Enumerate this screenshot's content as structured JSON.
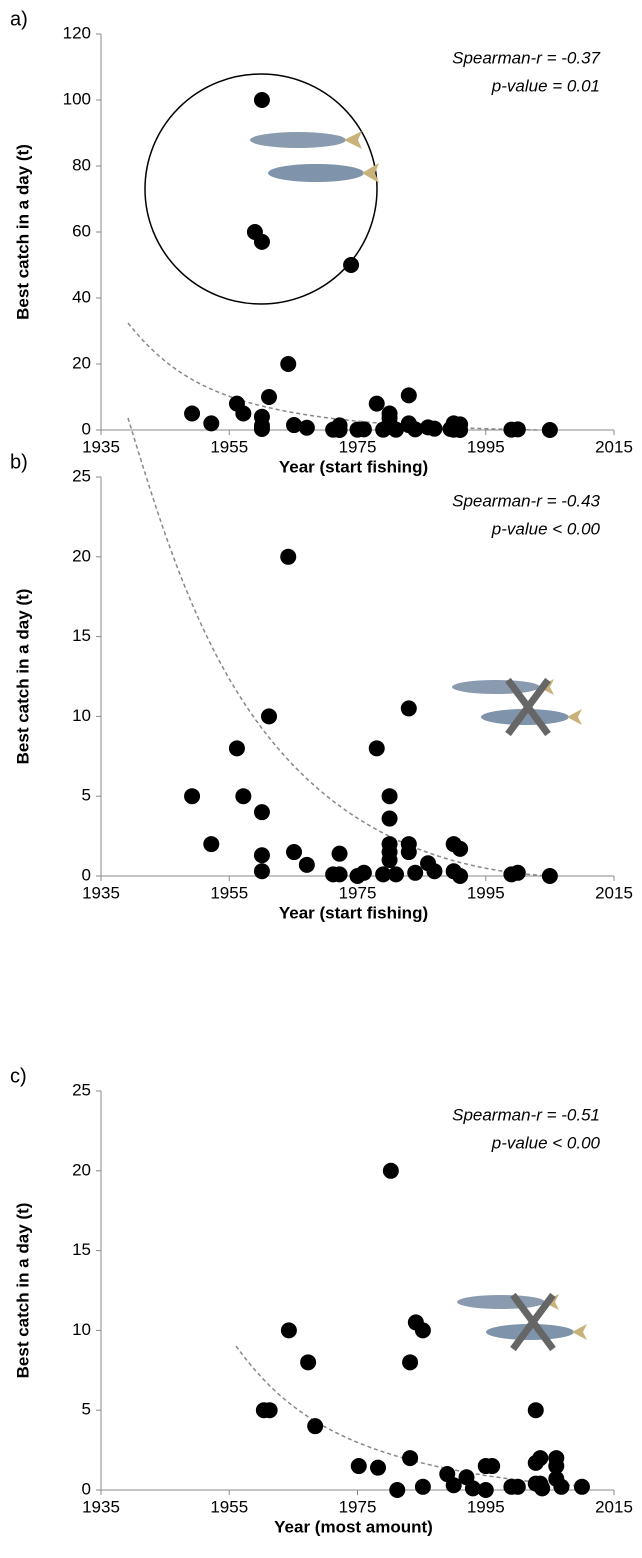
{
  "chart_data": [
    {
      "type": "scatter",
      "label": "a)",
      "x_label": "Year (start fishing)",
      "y_label": "Best catch in a day (t)",
      "annotations": [
        "Spearman-r = -0.37",
        "p-value = 0.01"
      ],
      "color": "#000000",
      "xlim": [
        1935,
        2015
      ],
      "xticks": [
        1935,
        1955,
        1975,
        1995,
        2015
      ],
      "ylim": [
        0,
        120
      ],
      "yticks": [
        0,
        20,
        40,
        60,
        80,
        100,
        120
      ],
      "x": [
        1949.2,
        1952.2,
        1956.2,
        1957.2,
        1960.1,
        1959,
        1960.1,
        1960.1,
        1960.1,
        1960.1,
        1961.2,
        1964.2,
        1965.1,
        1967.1,
        1974,
        1971.2,
        1972.2,
        1972.2,
        1975,
        1976,
        1978,
        1980,
        1980,
        1980,
        1980,
        1980,
        1979,
        1981,
        1983,
        1983,
        1983,
        1984,
        1986,
        1987,
        1990,
        1991,
        1989.5,
        1990,
        1991,
        1999,
        2000,
        2005
      ],
      "values": [
        5,
        2,
        8,
        5,
        100,
        60,
        57,
        4,
        0.3,
        1.3,
        10,
        20,
        1.5,
        0.7,
        50,
        0.1,
        0,
        1.4,
        0.1,
        0.2,
        8,
        5,
        3.6,
        2,
        1.4,
        1,
        0.1,
        0.1,
        10.5,
        2,
        1.5,
        0.2,
        0.8,
        0.4,
        2,
        1.7,
        0.3,
        0.1,
        0,
        0.1,
        0.2,
        0
      ]
    },
    {
      "type": "scatter",
      "label": "b)",
      "x_label": "Year (start fishing)",
      "y_label": "Best catch in a day (t)",
      "annotations": [
        "Spearman-r = -0.43",
        "p-value < 0.00"
      ],
      "color": "#000000",
      "xlim": [
        1935,
        2015
      ],
      "xticks": [
        1935,
        1955,
        1975,
        1995,
        2015
      ],
      "ylim": [
        0,
        25
      ],
      "yticks": [
        0,
        5,
        10,
        15,
        20,
        25
      ],
      "x": [
        1949.2,
        1952.2,
        1956.2,
        1957.2,
        1960.1,
        1960.1,
        1960.1,
        1961.2,
        1964.2,
        1965.1,
        1967.1,
        1971.2,
        1972.2,
        1972.2,
        1975,
        1976,
        1978,
        1980,
        1980,
        1980,
        1980,
        1980,
        1979,
        1981,
        1983,
        1983,
        1983,
        1984,
        1986,
        1987,
        1990,
        1990,
        1991,
        1991,
        1999,
        2000,
        2005
      ],
      "values": [
        5,
        2,
        8,
        5,
        4,
        1.3,
        0.3,
        10,
        20,
        1.5,
        0.7,
        0.1,
        0.1,
        1.4,
        0,
        0.2,
        8,
        5,
        3.6,
        2,
        1.5,
        1,
        0.1,
        0.1,
        10.5,
        2,
        1.5,
        0.2,
        0.8,
        0.3,
        0.3,
        2,
        1.7,
        0,
        0.1,
        0.2,
        0
      ]
    },
    {
      "type": "scatter",
      "label": "c)",
      "x_label": "Year (most amount)",
      "y_label": "Best catch in a day (t)",
      "annotations": [
        "Spearman-r = -0.51",
        "p-value < 0.00"
      ],
      "color": "#000000",
      "xlim": [
        1935,
        2015
      ],
      "xticks": [
        1935,
        1955,
        1975,
        1995,
        2015
      ],
      "ylim": [
        0,
        25
      ],
      "yticks": [
        0,
        5,
        10,
        15,
        20,
        25
      ],
      "x": [
        1960.4,
        1961.3,
        1964.3,
        1967.3,
        1968.4,
        1975.2,
        1978.2,
        1980.2,
        1981.2,
        1983.2,
        1983.2,
        1984.1,
        1985.2,
        1985.2,
        1989,
        1990,
        1992,
        1993,
        1995,
        1996,
        1995,
        1999,
        2000,
        2002.8,
        2002.8,
        2003.5,
        2002.8,
        2003.5,
        2003.8,
        2006,
        2006,
        2006,
        2006.8,
        2010
      ],
      "values": [
        5,
        5,
        10,
        8,
        4,
        1.5,
        1.4,
        20,
        0,
        8,
        2,
        10.5,
        10,
        0.2,
        1,
        0.3,
        0.8,
        0.1,
        1.5,
        1.5,
        0,
        0.2,
        0.2,
        5,
        1.7,
        2,
        0.4,
        0.4,
        0.1,
        2,
        1.5,
        0.7,
        0.2,
        0.2
      ]
    }
  ]
}
